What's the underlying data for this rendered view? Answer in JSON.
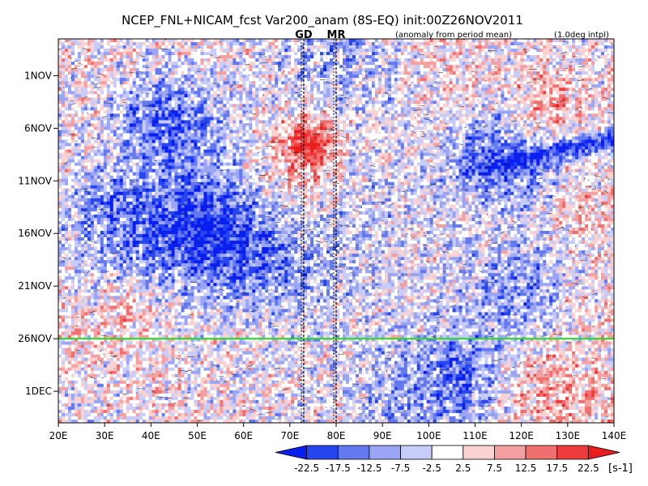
{
  "chart_data": {
    "type": "heatmap",
    "title": "NCEP_FNL+NICAM_fcst Var200_anam (8S-EQ) init:00Z26NOV2011",
    "subtitle_left": "(anomaly from period mean)",
    "subtitle_right": "(1.0deg intpl)",
    "x_ticks": [
      "20E",
      "30E",
      "40E",
      "50E",
      "60E",
      "70E",
      "80E",
      "90E",
      "100E",
      "110E",
      "120E",
      "130E",
      "140E"
    ],
    "x_tick_values": [
      20,
      30,
      40,
      50,
      60,
      70,
      80,
      90,
      100,
      110,
      120,
      130,
      140
    ],
    "xlim": [
      20,
      140
    ],
    "y_ticks": [
      "1NOV",
      "6NOV",
      "11NOV",
      "16NOV",
      "21NOV",
      "26NOV",
      "1DEC"
    ],
    "y_tick_values": [
      1,
      6,
      11,
      16,
      21,
      26,
      31
    ],
    "ylim": [
      -2.5,
      34
    ],
    "vertical_markers": [
      {
        "label": "GD",
        "lon": 73,
        "color": "#ff2020"
      },
      {
        "label": "MR",
        "lon": 80,
        "color": "#ff2020"
      }
    ],
    "init_line": {
      "day": 26,
      "color": "#22dd22"
    },
    "colorbar": {
      "levels": [
        "-22.5",
        "-17.5",
        "-12.5",
        "-7.5",
        "-2.5",
        "2.5",
        "7.5",
        "12.5",
        "17.5",
        "22.5"
      ],
      "unit": "[s-1]",
      "colors": [
        "#0a1ef0",
        "#2846f0",
        "#6478f0",
        "#9aa6f5",
        "#c8ccf8",
        "#ffffff",
        "#fad2d2",
        "#f5a0a0",
        "#f07070",
        "#ee3c3c",
        "#e81e1e"
      ]
    }
  }
}
